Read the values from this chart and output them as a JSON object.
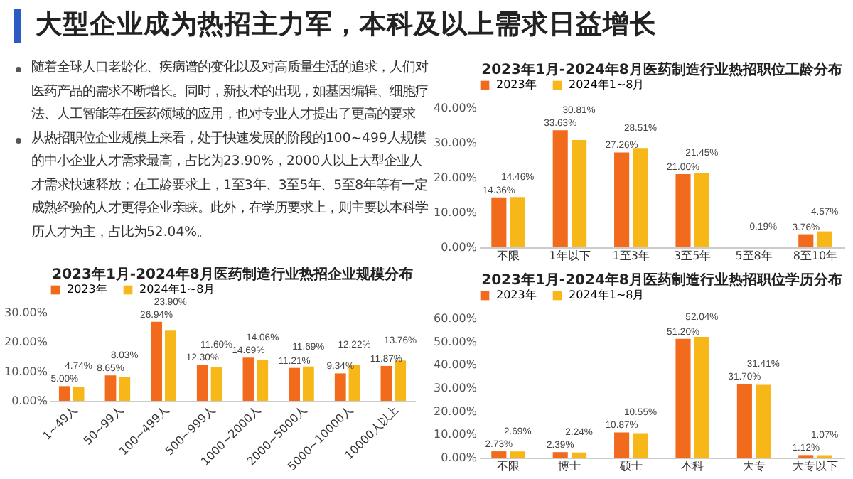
{
  "chart_data": [
    {
      "type": "other",
      "title": "大型企业成为热招主力军，本科及以上需求日益增长",
      "annotations": [
        "随着全球人口老龄化、疾病谱的变化以及对高质量生活的追求，人们对医药产品的需求不断增长。同时，新技术的出现，如基因编辑、细胞疗法、人工智能等在医药领域的应用，也对专业人才提出了更高的要求。",
        "从热招职位企业规模上来看，处于快速发展的阶段的100~499人规模的中小企业人才需求最高，占比为23.90%，2000人以上大型企业人才需求快速释放；在工龄要求上，1至3年、3至5年、5至8年等有一定成熟经验的人才更得企业亲睐。此外，在学历要求上，则主要以本科学历人才为主，占比为52.04%。"
      ]
    },
    {
      "type": "bar",
      "title": "2023年1月-2024年8月医药制造行业热招企业规模分布",
      "categories": [
        "1~49人",
        "50~99人",
        "100~499人",
        "500~999人",
        "1000~2000人",
        "2000~5000人",
        "5000~10000人",
        "10000人以上"
      ],
      "series": [
        {
          "name": "2023年",
          "color": "#f26a1b",
          "values": [
            5.0,
            8.65,
            26.94,
            12.3,
            14.69,
            11.21,
            9.34,
            11.87
          ],
          "value_labels": [
            "5.00%",
            "8.65%",
            "26.94%",
            "12.30%",
            "14.69%",
            "11.21%",
            "9.34%",
            "11.87%"
          ]
        },
        {
          "name": "2024年1~8月",
          "color": "#f7b718",
          "values": [
            4.74,
            8.03,
            23.9,
            11.6,
            14.06,
            11.69,
            12.22,
            13.76
          ],
          "value_labels": [
            "4.74%",
            "8.03%",
            "23.90%",
            "11.60%",
            "14.06%",
            "11.69%",
            "12.22%",
            "13.76%"
          ]
        }
      ],
      "ylim": [
        0,
        30
      ],
      "yticks": [
        {
          "value": 0,
          "label": "0.00%"
        },
        {
          "value": 10,
          "label": "10.00%"
        },
        {
          "value": 20,
          "label": "20.00%"
        },
        {
          "value": 30,
          "label": "30.00%"
        }
      ],
      "grid": false,
      "legend": "top"
    },
    {
      "type": "bar",
      "title": "2023年1月-2024年8月医药制造行业热招职位工龄分布",
      "categories": [
        "不限",
        "1年以下",
        "1至3年",
        "3至5年",
        "5至8年",
        "8至10年"
      ],
      "series": [
        {
          "name": "2023年",
          "color": "#f26a1b",
          "values": [
            14.36,
            33.63,
            27.26,
            21.0,
            null,
            3.76
          ],
          "value_labels": [
            "14.36%",
            "33.63%",
            "27.26%",
            "21.00%",
            null,
            "3.76%"
          ]
        },
        {
          "name": "2024年1~8月",
          "color": "#f7b718",
          "values": [
            14.46,
            30.81,
            28.51,
            21.45,
            0.19,
            4.57
          ],
          "value_labels": [
            "14.46%",
            "30.81%",
            "28.51%",
            "21.45%",
            "0.19%",
            "4.57%"
          ]
        }
      ],
      "ylim": [
        0,
        40
      ],
      "yticks": [
        {
          "value": 0,
          "label": "0.00%"
        },
        {
          "value": 10,
          "label": "10.00%"
        },
        {
          "value": 20,
          "label": "20.00%"
        },
        {
          "value": 30,
          "label": "30.00%"
        },
        {
          "value": 40,
          "label": "40.00%"
        }
      ],
      "grid": false,
      "legend": "top"
    },
    {
      "type": "bar",
      "title": "2023年1月-2024年8月医药制造行业热招职位学历分布",
      "categories": [
        "不限",
        "博士",
        "硕士",
        "本科",
        "大专",
        "大专以下"
      ],
      "series": [
        {
          "name": "2023年",
          "color": "#f26a1b",
          "values": [
            2.73,
            2.39,
            10.87,
            51.2,
            31.7,
            1.12
          ],
          "value_labels": [
            "2.73%",
            "2.39%",
            "10.87%",
            "51.20%",
            "31.70%",
            "1.12%"
          ]
        },
        {
          "name": "2024年1~8月",
          "color": "#f7b718",
          "values": [
            2.69,
            2.24,
            10.55,
            52.04,
            31.41,
            1.07
          ],
          "value_labels": [
            "2.69%",
            "2.24%",
            "10.55%",
            "52.04%",
            "31.41%",
            "1.07%"
          ]
        }
      ],
      "ylim": [
        0,
        60
      ],
      "yticks": [
        {
          "value": 0,
          "label": "0.00%"
        },
        {
          "value": 10,
          "label": "10.00%"
        },
        {
          "value": 20,
          "label": "20.00%"
        },
        {
          "value": 30,
          "label": "30.00%"
        },
        {
          "value": 40,
          "label": "40.00%"
        },
        {
          "value": 50,
          "label": "50.00%"
        },
        {
          "value": 60,
          "label": "60.00%"
        }
      ],
      "grid": false,
      "legend": "top"
    }
  ]
}
